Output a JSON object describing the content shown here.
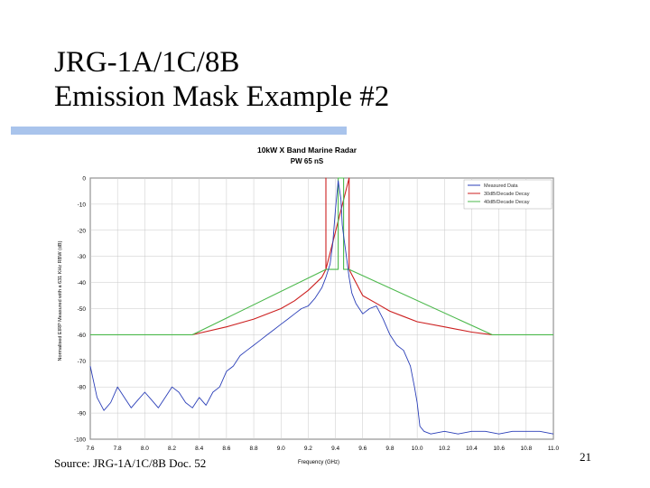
{
  "slide": {
    "title_line1": "JRG-1A/1C/8B",
    "title_line2": "Emission Mask Example #2",
    "source": "Source: JRG-1A/1C/8B Doc. 52",
    "page_number": "21",
    "accent_color": "#a9c4ec"
  },
  "chart_data": {
    "type": "line",
    "title": "10kW X Band Marine Radar",
    "subtitle": "PW 65 nS",
    "xlabel": "Frequency (GHz)",
    "ylabel": "Normalised EIRP Measured with a 631 KHz RBW (dB)",
    "xlim": [
      7.6,
      11.0
    ],
    "ylim": [
      -100,
      0
    ],
    "x_ticks": [
      "7.6",
      "7.8",
      "8.0",
      "8.2",
      "8.4",
      "8.6",
      "8.8",
      "9.0",
      "9.2",
      "9.4",
      "9.6",
      "9.8",
      "10.0",
      "10.2",
      "10.4",
      "10.6",
      "10.8",
      "11.0"
    ],
    "y_ticks": [
      "0",
      "-10",
      "-20",
      "-30",
      "-40",
      "-50",
      "-60",
      "-70",
      "-80",
      "-90",
      "-100"
    ],
    "grid": true,
    "legend_position": "top-right",
    "series": [
      {
        "name": "Measured Data",
        "color": "#2b3fb8",
        "x": [
          7.6,
          7.65,
          7.7,
          7.75,
          7.8,
          7.85,
          7.9,
          7.95,
          8.0,
          8.05,
          8.1,
          8.15,
          8.2,
          8.25,
          8.3,
          8.35,
          8.4,
          8.45,
          8.5,
          8.55,
          8.6,
          8.65,
          8.7,
          8.75,
          8.8,
          8.85,
          8.9,
          8.95,
          9.0,
          9.05,
          9.1,
          9.15,
          9.2,
          9.25,
          9.3,
          9.33,
          9.36,
          9.38,
          9.4,
          9.42,
          9.44,
          9.45,
          9.46,
          9.48,
          9.5,
          9.52,
          9.55,
          9.6,
          9.65,
          9.7,
          9.75,
          9.8,
          9.85,
          9.9,
          9.95,
          9.98,
          10.0,
          10.02,
          10.05,
          10.1,
          10.2,
          10.3,
          10.4,
          10.5,
          10.6,
          10.7,
          10.8,
          10.9,
          11.0
        ],
        "y": [
          -72,
          -84,
          -89,
          -86,
          -80,
          -84,
          -88,
          -85,
          -82,
          -85,
          -88,
          -84,
          -80,
          -82,
          -86,
          -88,
          -84,
          -87,
          -82,
          -80,
          -74,
          -72,
          -68,
          -66,
          -64,
          -62,
          -60,
          -58,
          -56,
          -54,
          -52,
          -50,
          -49,
          -46,
          -42,
          -38,
          -33,
          -25,
          -12,
          -1,
          -8,
          -18,
          -22,
          -30,
          -38,
          -44,
          -48,
          -52,
          -50,
          -49,
          -54,
          -60,
          -64,
          -66,
          -72,
          -80,
          -86,
          -95,
          -97,
          -98,
          -97,
          -98,
          -97,
          -97,
          -98,
          -97,
          -97,
          -97,
          -98
        ]
      },
      {
        "name": "30dB/Decade Decay",
        "color": "#cc1f1f",
        "x": [
          8.35,
          8.6,
          8.8,
          9.0,
          9.1,
          9.2,
          9.3,
          9.33,
          9.33,
          9.33,
          9.5,
          9.5,
          9.5,
          9.55,
          9.6,
          9.7,
          9.8,
          9.9,
          10.0,
          10.2,
          10.4,
          10.55
        ],
        "y": [
          -60,
          -57,
          -54,
          -50,
          -47,
          -43,
          -38,
          -35,
          0,
          -35,
          0,
          -35,
          -35,
          -40,
          -45,
          -48,
          -51,
          -53,
          -55,
          -57,
          -59,
          -60
        ]
      },
      {
        "name": "40dB/Decade Decay",
        "color": "#4bb84b",
        "x": [
          7.6,
          8.35,
          9.33,
          9.42,
          9.42,
          9.46,
          9.46,
          9.5,
          10.55,
          11.0
        ],
        "y": [
          -60,
          -60,
          -35,
          -35,
          0,
          0,
          -35,
          -35,
          -60,
          -60
        ]
      }
    ]
  }
}
